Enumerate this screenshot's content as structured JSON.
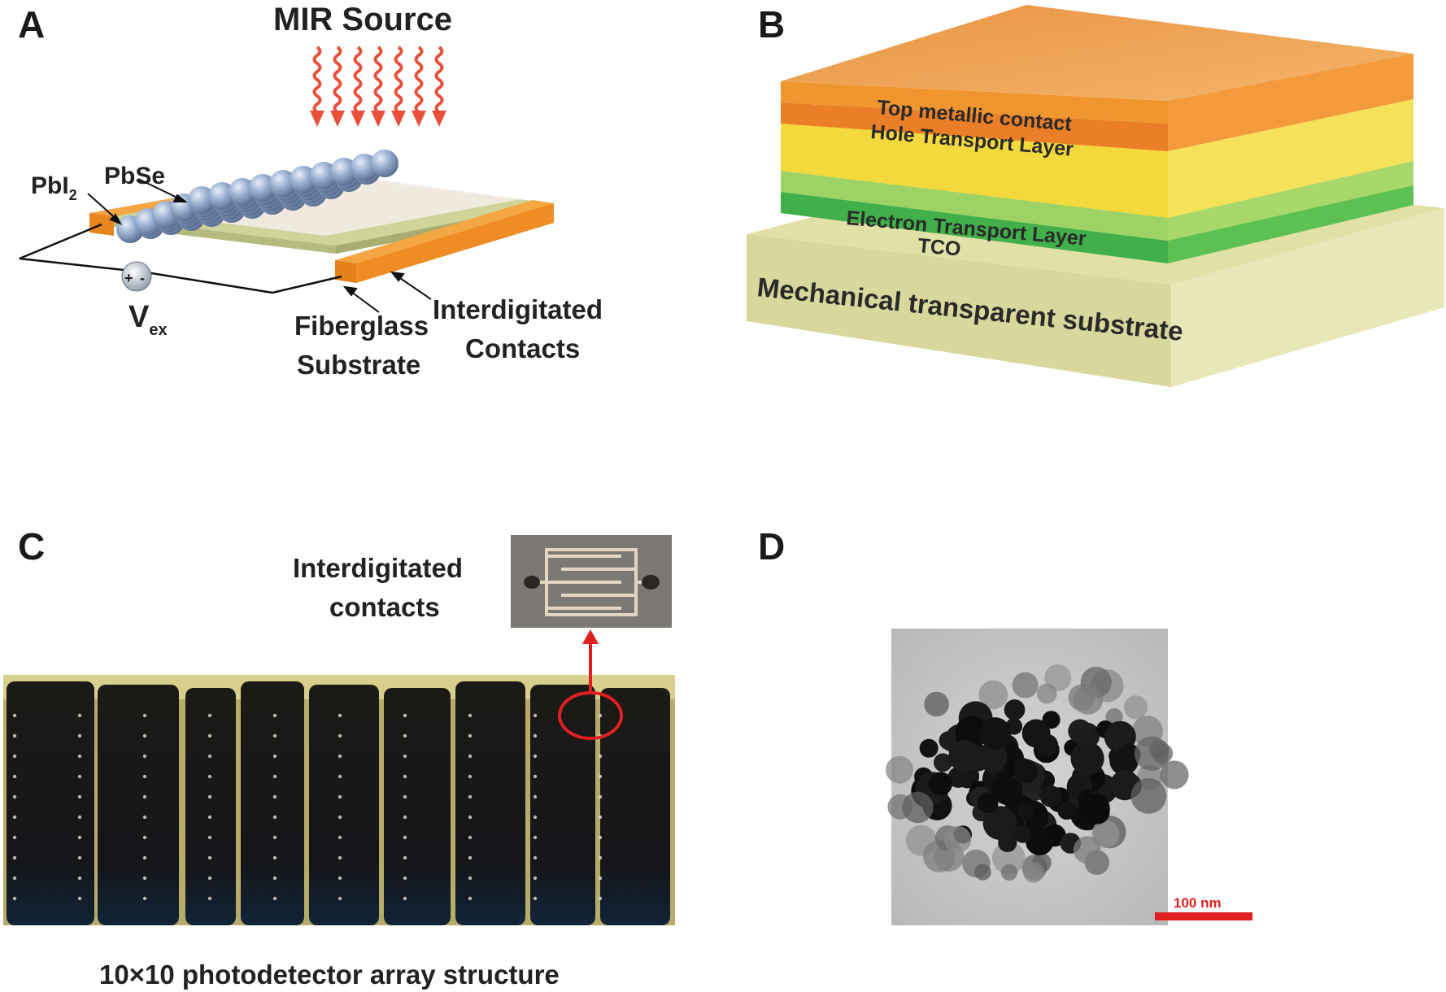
{
  "panels": {
    "a": {
      "letter": "A",
      "source": "MIR Source",
      "pbi": "PbI",
      "pbi_sub": "2",
      "pbse": "PbSe",
      "v": "V",
      "v_sub": "ex",
      "plus": "+",
      "minus": "-",
      "fiberglass_1": "Fiberglass",
      "fiberglass_2": "Substrate",
      "interdig_1": "Interdigitated",
      "interdig_2": "Contacts"
    },
    "b": {
      "letter": "B",
      "layers": {
        "top_contact": "Top metallic contact",
        "htl": "Hole Transport Layer",
        "etl": "Electron Transport Layer",
        "tco": "TCO",
        "substrate": "Mechanical transparent substrate"
      }
    },
    "c": {
      "letter": "C",
      "inset_1": "Interdigitated",
      "inset_2": "contacts",
      "caption": "10×10 photodetector array structure"
    },
    "d": {
      "letter": "D",
      "scale": "100 nm"
    }
  },
  "colors": {
    "orange": "#f0922e",
    "yellow": "#f5de3c",
    "green": "#3cb44a",
    "substrate": "#d8d89a",
    "sphere": "#8fa8cc",
    "arrow": "#e8503c"
  }
}
